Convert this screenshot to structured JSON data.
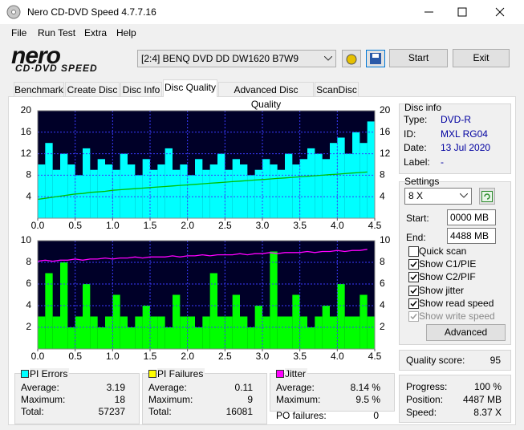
{
  "window": {
    "title": "Nero CD-DVD Speed 4.7.7.16"
  },
  "menu": [
    "File",
    "Run Test",
    "Extra",
    "Help"
  ],
  "logo": {
    "brand": "nero",
    "product": "CD·DVD SPEED"
  },
  "drive": "[2:4]  BENQ DVD DD DW1620 B7W9",
  "buttons": {
    "start": "Start",
    "exit": "Exit"
  },
  "tabs": [
    "Benchmark",
    "Create Disc",
    "Disc Info",
    "Disc Quality",
    "Advanced Disc Quality",
    "ScanDisc"
  ],
  "active_tab": 3,
  "disc_info": {
    "title": "Disc info",
    "rows": [
      [
        "Type:",
        "DVD-R"
      ],
      [
        "ID:",
        "MXL RG04"
      ],
      [
        "Date:",
        "13 Jul 2020"
      ],
      [
        "Label:",
        "-"
      ]
    ]
  },
  "settings": {
    "title": "Settings",
    "speed": "8 X",
    "start_label": "Start:",
    "start": "0000 MB",
    "end_label": "End:",
    "end": "4488 MB",
    "checks": [
      {
        "label": "Quick scan",
        "checked": false,
        "disabled": false
      },
      {
        "label": "Show C1/PIE",
        "checked": true,
        "disabled": false
      },
      {
        "label": "Show C2/PIF",
        "checked": true,
        "disabled": false
      },
      {
        "label": "Show jitter",
        "checked": true,
        "disabled": false
      },
      {
        "label": "Show read speed",
        "checked": true,
        "disabled": false
      },
      {
        "label": "Show write speed",
        "checked": true,
        "disabled": true
      }
    ],
    "advanced": "Advanced"
  },
  "quality": {
    "label": "Quality score:",
    "value": 95
  },
  "progress": [
    [
      "Progress:",
      "100 %"
    ],
    [
      "Position:",
      "4487 MB"
    ],
    [
      "Speed:",
      "8.37 X"
    ]
  ],
  "stats": [
    {
      "title": "PI Errors",
      "color": "#00ffff",
      "rows": [
        [
          "Average:",
          "3.19"
        ],
        [
          "Maximum:",
          "18"
        ],
        [
          "Total:",
          "57237"
        ]
      ]
    },
    {
      "title": "PI Failures",
      "color": "#ffff00",
      "rows": [
        [
          "Average:",
          "0.11"
        ],
        [
          "Maximum:",
          "9"
        ],
        [
          "Total:",
          "16081"
        ]
      ]
    },
    {
      "title": "Jitter",
      "color": "#ff00ff",
      "rows": [
        [
          "Average:",
          "8.14 %"
        ],
        [
          "Maximum:",
          "9.5 %"
        ]
      ]
    }
  ],
  "po_failures": {
    "label": "PO failures:",
    "value": "0"
  },
  "chart_data": [
    {
      "type": "bar",
      "xlim": [
        0,
        4.5
      ],
      "ylim": [
        0,
        20
      ],
      "grid": true,
      "xticks": [
        {
          "value": 0,
          "label": "0.0"
        },
        {
          "value": 0.5,
          "label": "0.5"
        },
        {
          "value": 1,
          "label": "1.0"
        },
        {
          "value": 1.5,
          "label": "1.5"
        },
        {
          "value": 2,
          "label": "2.0"
        },
        {
          "value": 2.5,
          "label": "2.5"
        },
        {
          "value": 3,
          "label": "3.0"
        },
        {
          "value": 3.5,
          "label": "3.5"
        },
        {
          "value": 4,
          "label": "4.0"
        },
        {
          "value": 4.5,
          "label": "4.5"
        }
      ],
      "yticks": [
        4,
        8,
        12,
        16,
        20
      ],
      "x": [
        0,
        0.1,
        0.2,
        0.3,
        0.4,
        0.5,
        0.6,
        0.7,
        0.8,
        0.9,
        1,
        1.1,
        1.2,
        1.3,
        1.4,
        1.5,
        1.6,
        1.7,
        1.8,
        1.9,
        2,
        2.1,
        2.2,
        2.3,
        2.4,
        2.5,
        2.6,
        2.7,
        2.8,
        2.9,
        3,
        3.1,
        3.2,
        3.3,
        3.4,
        3.5,
        3.6,
        3.7,
        3.8,
        3.9,
        4,
        4.1,
        4.2,
        4.3,
        4.4
      ],
      "series": [
        {
          "type": "bar",
          "color": "#00ffff",
          "values": [
            10,
            14,
            9,
            12,
            10,
            8,
            13,
            9,
            11,
            10,
            9,
            12,
            10,
            8,
            11,
            9,
            10,
            13,
            9,
            10,
            8,
            11,
            9,
            10,
            12,
            9,
            11,
            10,
            8,
            9,
            11,
            10,
            9,
            12,
            10,
            11,
            13,
            12,
            11,
            14,
            15,
            12,
            16,
            14,
            18
          ]
        },
        {
          "type": "line",
          "color": "#00c000",
          "values": [
            3.5,
            3.7,
            3.9,
            4.1,
            4.3,
            4.5,
            4.6,
            4.8,
            4.9,
            5.0,
            5.2,
            5.3,
            5.4,
            5.5,
            5.6,
            5.7,
            5.8,
            5.9,
            6.0,
            6.1,
            6.2,
            6.3,
            6.4,
            6.5,
            6.6,
            6.7,
            6.8,
            6.9,
            7.0,
            7.1,
            7.2,
            7.3,
            7.4,
            7.5,
            7.6,
            7.7,
            7.8,
            7.9,
            8.0,
            8.1,
            8.2,
            8.3,
            8.4,
            8.5,
            8.6
          ]
        }
      ]
    },
    {
      "type": "bar",
      "xlim": [
        0,
        4.5
      ],
      "ylim": [
        0,
        10
      ],
      "grid": true,
      "xticks": [
        {
          "value": 0,
          "label": "0.0"
        },
        {
          "value": 0.5,
          "label": "0.5"
        },
        {
          "value": 1,
          "label": "1.0"
        },
        {
          "value": 1.5,
          "label": "1.5"
        },
        {
          "value": 2,
          "label": "2.0"
        },
        {
          "value": 2.5,
          "label": "2.5"
        },
        {
          "value": 3,
          "label": "3.0"
        },
        {
          "value": 3.5,
          "label": "3.5"
        },
        {
          "value": 4,
          "label": "4.0"
        },
        {
          "value": 4.5,
          "label": "4.5"
        }
      ],
      "yticks": [
        2,
        4,
        6,
        8,
        10
      ],
      "x": [
        0,
        0.1,
        0.2,
        0.3,
        0.4,
        0.5,
        0.6,
        0.7,
        0.8,
        0.9,
        1,
        1.1,
        1.2,
        1.3,
        1.4,
        1.5,
        1.6,
        1.7,
        1.8,
        1.9,
        2,
        2.1,
        2.2,
        2.3,
        2.4,
        2.5,
        2.6,
        2.7,
        2.8,
        2.9,
        3,
        3.1,
        3.2,
        3.3,
        3.4,
        3.5,
        3.6,
        3.7,
        3.8,
        3.9,
        4,
        4.1,
        4.2,
        4.3,
        4.4
      ],
      "series": [
        {
          "type": "bar",
          "color": "#00ff00",
          "values": [
            3,
            7,
            3,
            8,
            2,
            3,
            6,
            3,
            2,
            3,
            5,
            3,
            2,
            3,
            4,
            3,
            3,
            2,
            5,
            3,
            3,
            2,
            3,
            7,
            3,
            3,
            5,
            3,
            2,
            4,
            3,
            9,
            3,
            3,
            5,
            3,
            2,
            3,
            4,
            3,
            6,
            3,
            3,
            5,
            3
          ]
        },
        {
          "type": "line",
          "color": "#ff00ff",
          "values": [
            8.1,
            8.2,
            8.1,
            8.2,
            8.2,
            8.3,
            8.2,
            8.3,
            8.3,
            8.4,
            8.3,
            8.4,
            8.4,
            8.5,
            8.4,
            8.5,
            8.5,
            8.5,
            8.6,
            8.5,
            8.6,
            8.6,
            8.7,
            8.6,
            8.7,
            8.7,
            8.7,
            8.8,
            8.7,
            8.8,
            8.8,
            8.9,
            8.8,
            8.9,
            8.9,
            8.9,
            9.0,
            8.9,
            9.0,
            9.0,
            9.1,
            9.0,
            9.1,
            9.1,
            9.2
          ]
        }
      ]
    }
  ]
}
